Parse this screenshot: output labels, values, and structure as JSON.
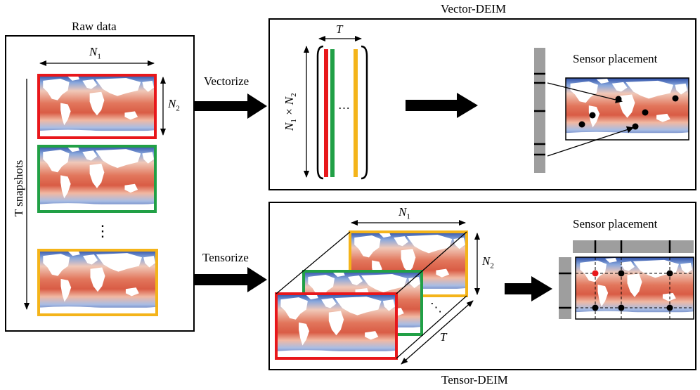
{
  "raw": {
    "title": "Raw data",
    "n1": "N",
    "n1_sub": "1",
    "n2": "N",
    "n2_sub": "2",
    "snapshots": "T snapshots",
    "dots": "⋮"
  },
  "arrows": {
    "vectorize": "Vectorize",
    "tensorize": "Tensorize"
  },
  "vector": {
    "title": "Vector-DEIM",
    "t": "T",
    "dim": "N",
    "dim_sub1": "1",
    "dim_mid": " × N",
    "dim_sub2": "2",
    "dots": "…",
    "sensor": "Sensor placement"
  },
  "tensor": {
    "title": "Tensor-DEIM",
    "n1": "N",
    "n1_sub": "1",
    "n2": "N",
    "n2_sub": "2",
    "t": "T",
    "dots": "⋱",
    "sensor": "Sensor placement"
  },
  "colors": {
    "red": "#e8171b",
    "green": "#21a046",
    "yellow": "#f4b41a",
    "gray": "#9e9e9e",
    "sensor_red": "#e8171b"
  }
}
